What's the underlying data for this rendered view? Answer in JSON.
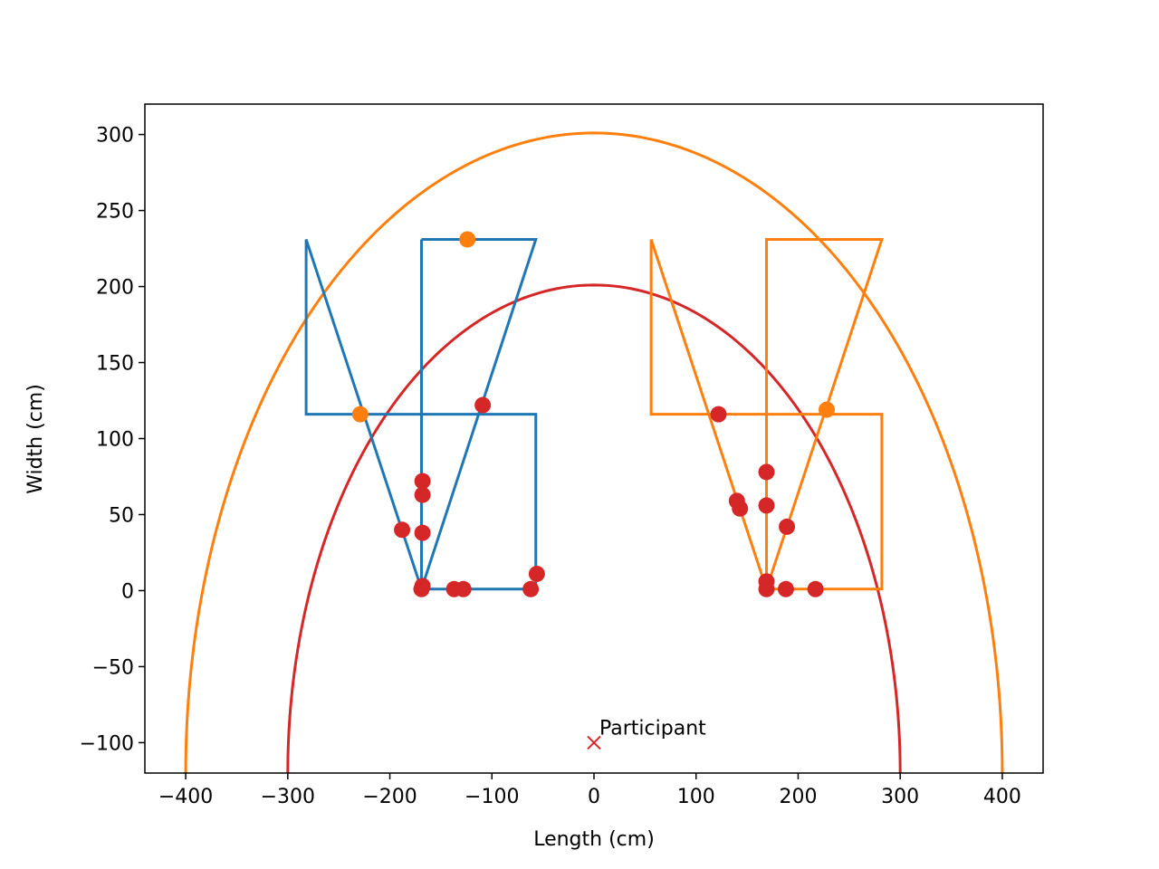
{
  "chart_data": {
    "type": "scatter",
    "title": "",
    "xlabel": "Length (cm)",
    "ylabel": "Width (cm)",
    "xlim": [
      -440,
      440
    ],
    "ylim": [
      -120,
      320
    ],
    "xticks": [
      -400,
      -300,
      -200,
      -100,
      0,
      100,
      200,
      300,
      400
    ],
    "yticks": [
      -100,
      -50,
      0,
      50,
      100,
      150,
      200,
      250,
      300
    ],
    "tick_labels_x": [
      "−400",
      "−300",
      "−200",
      "−100",
      "0",
      "100",
      "200",
      "300",
      "400"
    ],
    "tick_labels_y": [
      "−100",
      "−50",
      "0",
      "50",
      "100",
      "150",
      "200",
      "250",
      "300"
    ],
    "grid": false,
    "colors": {
      "blue": "#1f77b4",
      "orange": "#ff7f0e",
      "red": "#d62728"
    },
    "paths": [
      {
        "color": "#1f77b4",
        "points": [
          [
            -169,
            231
          ],
          [
            -57,
            231
          ],
          [
            -169,
            1
          ],
          [
            -282,
            231
          ],
          [
            -282,
            116
          ],
          [
            -57,
            116
          ],
          [
            -57,
            1
          ],
          [
            -169,
            1
          ],
          [
            -169,
            231
          ]
        ]
      },
      {
        "color": "#ff7f0e",
        "points": [
          [
            56,
            231
          ],
          [
            169,
            1
          ],
          [
            169,
            231
          ],
          [
            282,
            231
          ],
          [
            169,
            1
          ],
          [
            282,
            1
          ],
          [
            282,
            116
          ],
          [
            56,
            116
          ],
          [
            56,
            231
          ]
        ]
      }
    ],
    "curves": [
      {
        "color": "#ff7f0e",
        "center": [
          0,
          -120
        ],
        "rx": 400,
        "ry": 421
      },
      {
        "color": "#d62728",
        "center": [
          0,
          -120
        ],
        "rx": 300,
        "ry": 321
      }
    ],
    "points": [
      {
        "x": -124,
        "y": 231,
        "color": "#ff7f0e"
      },
      {
        "x": -229,
        "y": 116,
        "color": "#ff7f0e"
      },
      {
        "x": 228,
        "y": 119,
        "color": "#ff7f0e"
      },
      {
        "x": -109,
        "y": 122,
        "color": "#d62728"
      },
      {
        "x": -168,
        "y": 72,
        "color": "#d62728"
      },
      {
        "x": -168,
        "y": 63,
        "color": "#d62728"
      },
      {
        "x": -188,
        "y": 40,
        "color": "#d62728"
      },
      {
        "x": -168,
        "y": 38,
        "color": "#d62728"
      },
      {
        "x": -168,
        "y": 3,
        "color": "#d62728"
      },
      {
        "x": -169,
        "y": 1,
        "color": "#d62728"
      },
      {
        "x": -137,
        "y": 1,
        "color": "#d62728"
      },
      {
        "x": -128,
        "y": 1,
        "color": "#d62728"
      },
      {
        "x": -62,
        "y": 1,
        "color": "#d62728"
      },
      {
        "x": -56,
        "y": 11,
        "color": "#d62728"
      },
      {
        "x": 122,
        "y": 116,
        "color": "#d62728"
      },
      {
        "x": 169,
        "y": 78,
        "color": "#d62728"
      },
      {
        "x": 140,
        "y": 59,
        "color": "#d62728"
      },
      {
        "x": 143,
        "y": 54,
        "color": "#d62728"
      },
      {
        "x": 169,
        "y": 56,
        "color": "#d62728"
      },
      {
        "x": 189,
        "y": 42,
        "color": "#d62728"
      },
      {
        "x": 169,
        "y": 6,
        "color": "#d62728"
      },
      {
        "x": 169,
        "y": 1,
        "color": "#d62728"
      },
      {
        "x": 188,
        "y": 1,
        "color": "#d62728"
      },
      {
        "x": 217,
        "y": 1,
        "color": "#d62728"
      }
    ],
    "marker": {
      "x": 0,
      "y": -100,
      "symbol": "x",
      "color": "#d62728",
      "label": "Participant"
    }
  }
}
